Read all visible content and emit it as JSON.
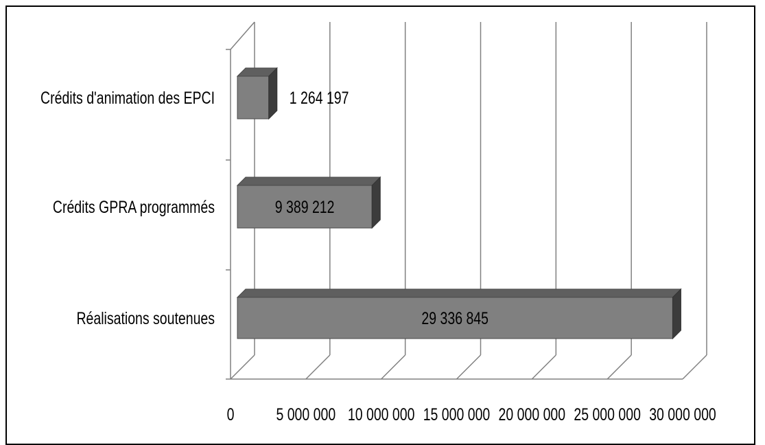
{
  "chart_data": {
    "type": "bar",
    "orientation": "horizontal",
    "style": "3d",
    "categories": [
      "Réalisations soutenues",
      "Crédits GPRA programmés",
      "Crédits d'animation des EPCI"
    ],
    "values": [
      29336845,
      9389212,
      1264197
    ],
    "data_labels": [
      "29 336 845",
      "9 389 212",
      "1 264 197"
    ],
    "x_ticks": [
      "0",
      "5 000 000",
      "10 000 000",
      "15 000 000",
      "20 000 000",
      "25 000 000",
      "30 000 000"
    ],
    "xlim": [
      0,
      30000000
    ],
    "grid": true,
    "bar_color": "#808080",
    "bar_top_color": "#5f5f5f",
    "bar_side_color": "#3c3c3c",
    "grid_color": "#808080"
  }
}
